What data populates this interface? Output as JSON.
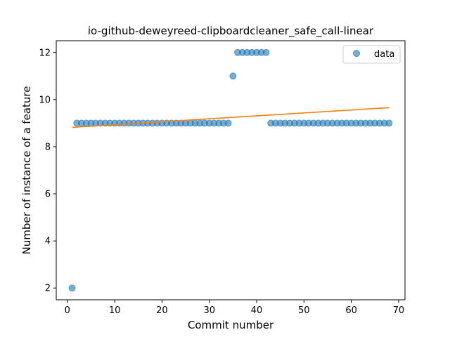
{
  "chart_data": {
    "type": "scatter",
    "title": "io-github-deweyreed-clipboardcleaner_safe_call-linear",
    "xlabel": "Commit number",
    "ylabel": "Number of instance of a feature",
    "xlim": [
      -2.35,
      71.35
    ],
    "ylim": [
      1.5,
      12.5
    ],
    "xticks": [
      0,
      10,
      20,
      30,
      40,
      50,
      60,
      70
    ],
    "yticks": [
      2,
      4,
      6,
      8,
      10,
      12
    ],
    "grid": false,
    "legend_position": "top-right",
    "series": [
      {
        "name": "data",
        "kind": "scatter",
        "color": "#1f77b4",
        "x": [
          1,
          2,
          3,
          4,
          5,
          6,
          7,
          8,
          9,
          10,
          11,
          12,
          13,
          14,
          15,
          16,
          17,
          18,
          19,
          20,
          21,
          22,
          23,
          24,
          25,
          26,
          27,
          28,
          29,
          30,
          31,
          32,
          33,
          34,
          35,
          36,
          37,
          38,
          39,
          40,
          41,
          42,
          43,
          44,
          45,
          46,
          47,
          48,
          49,
          50,
          51,
          52,
          53,
          54,
          55,
          56,
          57,
          58,
          59,
          60,
          61,
          62,
          63,
          64,
          65,
          66,
          67,
          68
        ],
        "y": [
          2,
          9,
          9,
          9,
          9,
          9,
          9,
          9,
          9,
          9,
          9,
          9,
          9,
          9,
          9,
          9,
          9,
          9,
          9,
          9,
          9,
          9,
          9,
          9,
          9,
          9,
          9,
          9,
          9,
          9,
          9,
          9,
          9,
          9,
          11,
          12,
          12,
          12,
          12,
          12,
          12,
          12,
          9,
          9,
          9,
          9,
          9,
          9,
          9,
          9,
          9,
          9,
          9,
          9,
          9,
          9,
          9,
          9,
          9,
          9,
          9,
          9,
          9,
          9,
          9,
          9,
          9,
          9
        ]
      },
      {
        "kind": "line",
        "color": "#ff7f0e",
        "x": [
          1,
          68
        ],
        "y": [
          8.82,
          9.66
        ]
      }
    ]
  }
}
